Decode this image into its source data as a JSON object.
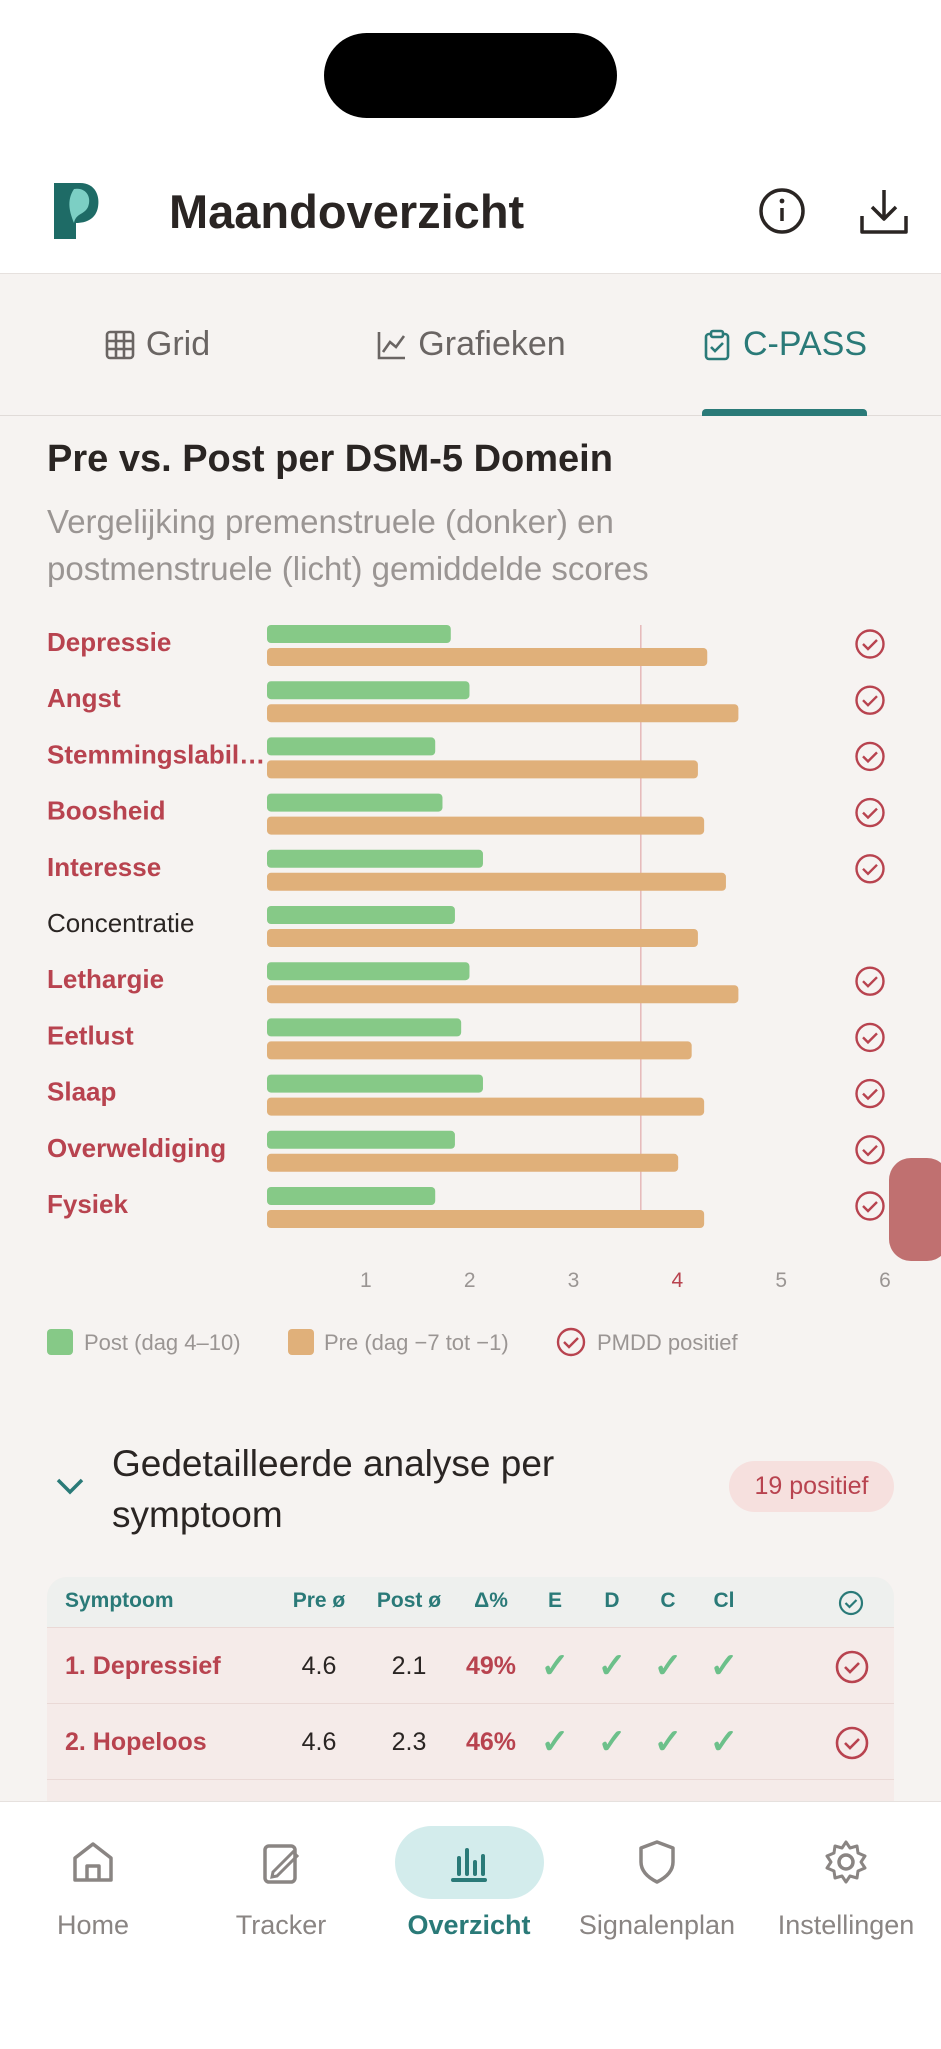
{
  "header": {
    "title": "Maandoverzicht"
  },
  "tabs": {
    "items": [
      "Grid",
      "Grafieken",
      "C-PASS"
    ],
    "active": 2
  },
  "chart_data": {
    "type": "bar",
    "orientation": "horizontal",
    "title": "Pre vs. Post per DSM-5 Domein",
    "subtitle": "Vergelijking premenstruele (donker) en postmenstruele (licht) gemiddelde scores",
    "categories": [
      "Depressie",
      "Angst",
      "Stemmingslabil…",
      "Boosheid",
      "Interesse",
      "Concentratie",
      "Lethargie",
      "Eetlust",
      "Slaap",
      "Overweldiging",
      "Fysiek"
    ],
    "series": [
      {
        "name": "Post (dag 4–10)",
        "color": "#86c987",
        "values": [
          1.77,
          1.95,
          1.62,
          1.69,
          2.08,
          1.81,
          1.95,
          1.87,
          2.08,
          1.81,
          1.62
        ]
      },
      {
        "name": "Pre (dag −7 tot −1)",
        "color": "#e0b07a",
        "values": [
          4.24,
          4.54,
          4.15,
          4.21,
          4.42,
          4.15,
          4.54,
          4.09,
          4.21,
          3.96,
          4.21
        ]
      }
    ],
    "pmdd_positive": [
      true,
      true,
      true,
      true,
      true,
      false,
      true,
      true,
      true,
      true,
      true
    ],
    "marker_legend": "PMDD positief",
    "positive_color": "#b8434f",
    "xlim": [
      0,
      6
    ],
    "xticks": [
      1,
      2,
      3,
      4,
      5,
      6
    ],
    "highlight_xtick": 4,
    "reference_line": 3.6
  },
  "details": {
    "title": "Gedetailleerde analyse per symptoom",
    "badge": "19 positief",
    "table": {
      "header": [
        "Symptoom",
        "Pre ø",
        "Post ø",
        "Δ%",
        "E",
        "D",
        "C",
        "Cl"
      ],
      "rows": [
        [
          "1. Depressief",
          "4.6",
          "2.1",
          "49%",
          "✓",
          "✓",
          "✓",
          "✓"
        ],
        [
          "2. Hopeloos",
          "4.6",
          "2.3",
          "46%",
          "✓",
          "✓",
          "✓",
          "✓"
        ]
      ]
    }
  },
  "nav": {
    "items": [
      "Home",
      "Tracker",
      "Overzicht",
      "Signalenplan",
      "Instellingen"
    ],
    "active": 2
  }
}
